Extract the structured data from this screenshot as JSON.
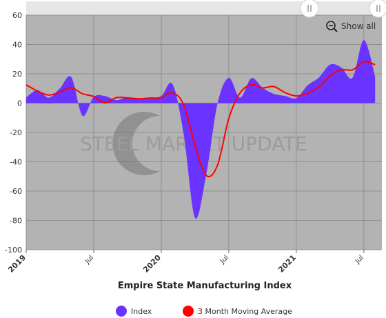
{
  "chart_data": {
    "type": "area",
    "title": "Empire State Manufacturing Index",
    "xlabel": "",
    "ylabel": "",
    "ylim": [
      -100,
      60
    ],
    "yticks": [
      60,
      40,
      20,
      0,
      -20,
      -40,
      -60,
      -80,
      -100
    ],
    "x_range": [
      "2019-01",
      "2021-08"
    ],
    "x_ticks": [
      {
        "label": "2019",
        "date": "2019-01",
        "major": true
      },
      {
        "label": "Jul",
        "date": "2019-07",
        "major": false
      },
      {
        "label": "2020",
        "date": "2020-01",
        "major": true
      },
      {
        "label": "Jul",
        "date": "2020-07",
        "major": false
      },
      {
        "label": "2021",
        "date": "2021-01",
        "major": true
      },
      {
        "label": "Jul",
        "date": "2021-07",
        "major": false
      }
    ],
    "x": [
      "2019-01",
      "2019-02",
      "2019-03",
      "2019-04",
      "2019-05",
      "2019-06",
      "2019-07",
      "2019-08",
      "2019-09",
      "2019-10",
      "2019-11",
      "2019-12",
      "2020-01",
      "2020-02",
      "2020-03",
      "2020-04",
      "2020-05",
      "2020-06",
      "2020-07",
      "2020-08",
      "2020-09",
      "2020-10",
      "2020-11",
      "2020-12",
      "2021-01",
      "2021-02",
      "2021-03",
      "2021-04",
      "2021-05",
      "2021-06",
      "2021-07",
      "2021-08"
    ],
    "series": [
      {
        "name": "Index",
        "type": "area",
        "color": "#6a33ff",
        "values": [
          3.9,
          8.8,
          3.7,
          10.1,
          17.8,
          -8.6,
          4.3,
          4.8,
          2.0,
          4.0,
          2.9,
          3.5,
          4.8,
          12.9,
          -21.5,
          -78.2,
          -48.5,
          -0.2,
          17.2,
          3.7,
          17.0,
          10.5,
          6.3,
          4.9,
          3.5,
          12.1,
          17.4,
          26.3,
          24.3,
          17.4,
          43.0,
          18.3
        ]
      },
      {
        "name": "3 Month Moving Average",
        "type": "line",
        "color": "#ff0000",
        "values": [
          12.5,
          8.2,
          5.5,
          7.5,
          10.5,
          6.4,
          4.5,
          0.2,
          3.7,
          3.6,
          3.0,
          3.5,
          3.7,
          7.1,
          -1.3,
          -28.9,
          -49.4,
          -42.3,
          -10.5,
          6.9,
          12.6,
          10.4,
          11.3,
          7.2,
          4.9,
          6.8,
          11.0,
          18.6,
          22.7,
          22.7,
          28.2,
          26.2
        ]
      }
    ],
    "legend": {
      "position": "bottom-center",
      "entries": [
        "Index",
        "3 Month Moving Average"
      ]
    },
    "grid": true
  },
  "controls": {
    "show_all_label": "Show all",
    "zoom_icon": "zoom-out-icon",
    "handle_icon": "grip-lines-icon"
  },
  "watermark": {
    "logo_icon": "steel-market-update-swoosh-logo",
    "text": "STEEL MARKET UPDATE"
  },
  "colors": {
    "plot_background": "#b3b3b3",
    "area_fill": "#6a33ff",
    "line": "#ff0000",
    "navigator_bar": "#e6e6e6"
  }
}
